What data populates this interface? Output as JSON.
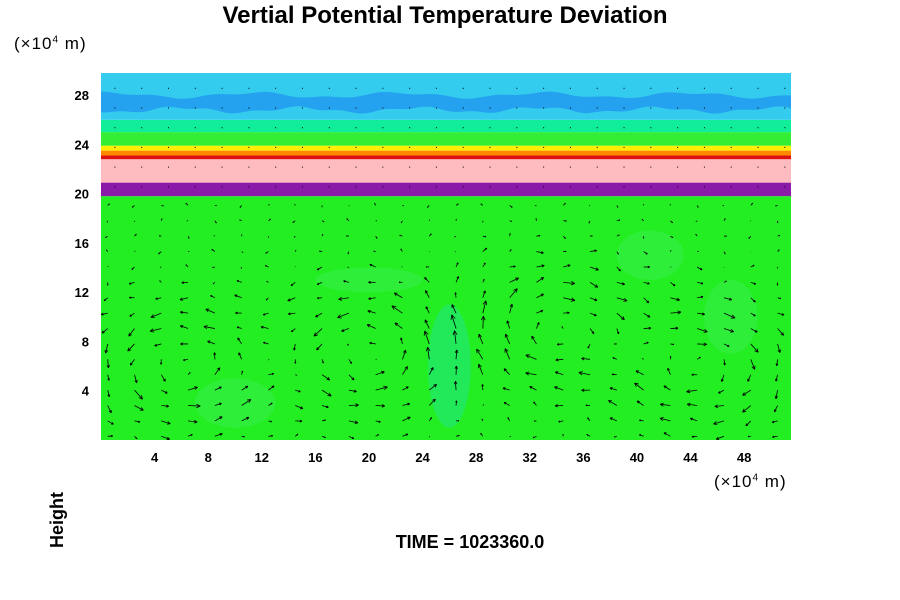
{
  "title": "Vertial Potential Temperature Deviation",
  "ylabel": "Height",
  "y_unit": {
    "prefix": "(×10",
    "exp": "4",
    "suffix": " m)"
  },
  "x_unit": {
    "prefix": "(×10",
    "exp": "4",
    "suffix": " m)"
  },
  "time": {
    "label": "TIME = ",
    "value": "1023360.0"
  },
  "chart_data": {
    "type": "heatmap",
    "title": "Vertial Potential Temperature Deviation",
    "xlabel": "",
    "ylabel": "Height",
    "xlim": [
      0,
      51.5
    ],
    "ylim": [
      0,
      29.8
    ],
    "x_ticks": [
      "4",
      "8",
      "12",
      "16",
      "20",
      "24",
      "28",
      "32",
      "36",
      "40",
      "44",
      "48"
    ],
    "y_ticks": [
      "4",
      "8",
      "12",
      "16",
      "20",
      "24",
      "28"
    ],
    "x_tick_values": [
      4,
      8,
      12,
      16,
      20,
      24,
      28,
      32,
      36,
      40,
      44,
      48
    ],
    "y_tick_values": [
      4,
      8,
      12,
      16,
      20,
      24,
      28
    ],
    "layers": [
      {
        "from": 0,
        "to": 19.8,
        "color": "#22ee22"
      },
      {
        "from": 19.8,
        "to": 20.9,
        "color": "#8a1aa8"
      },
      {
        "from": 20.9,
        "to": 22.8,
        "color": "#ffbcc0"
      },
      {
        "from": 22.8,
        "to": 23.1,
        "color": "#dd1111"
      },
      {
        "from": 23.1,
        "to": 23.5,
        "color": "#ff8800"
      },
      {
        "from": 23.5,
        "to": 23.9,
        "color": "#ffee00"
      },
      {
        "from": 23.9,
        "to": 25.0,
        "color": "#33ee33"
      },
      {
        "from": 25.0,
        "to": 26.0,
        "color": "#11ee99"
      },
      {
        "from": 26.0,
        "to": 29.8,
        "color": "#33ccee"
      }
    ],
    "blue_band": {
      "center": 27.4,
      "halfwidth": 0.6,
      "color": "#2299ee"
    },
    "vector_field": {
      "region_y": [
        0,
        19.6
      ],
      "cells": [
        {
          "x": 20,
          "y": 7,
          "rotation": "counterclockwise"
        },
        {
          "x": 45,
          "y": 6,
          "rotation": "clockwise"
        },
        {
          "x": 6,
          "y": 6,
          "rotation": "counterclockwise"
        },
        {
          "x": 34,
          "y": 9,
          "rotation": "clockwise"
        }
      ]
    }
  }
}
